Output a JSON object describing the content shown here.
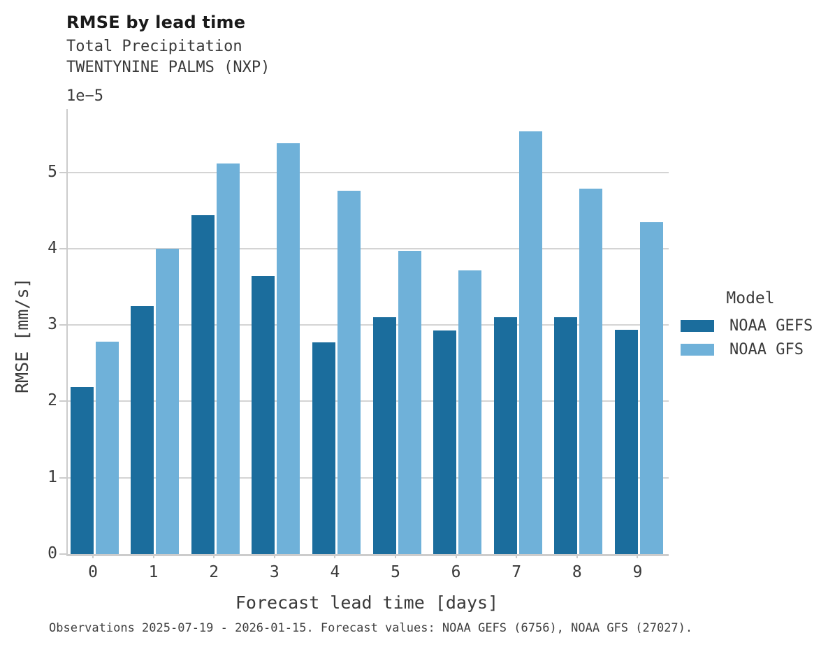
{
  "header": {
    "title": "RMSE by lead time",
    "subtitle_line1": "Total Precipitation",
    "subtitle_line2": "TWENTYNINE PALMS (NXP)"
  },
  "axes": {
    "y_offset_label": "1e−5",
    "ylabel": "RMSE [mm/s]",
    "xlabel": "Forecast lead time [days]"
  },
  "legend": {
    "title": "Model",
    "entries": [
      {
        "label": "NOAA GEFS",
        "color": "#1b6d9d"
      },
      {
        "label": "NOAA GFS",
        "color": "#6fb1d9"
      }
    ]
  },
  "caption": "Observations 2025-07-19 - 2026-01-15. Forecast values: NOAA GEFS (6756), NOAA GFS (27027).",
  "colors": {
    "gefs_bar": "#1b6d9d",
    "gfs_bar": "#6fb1d9",
    "gridline": "#d4d4d4",
    "spine": "#cccccc",
    "text": "#3a3a3a",
    "title_text": "#1a1a1a"
  },
  "chart_data": {
    "type": "bar",
    "title": "RMSE by lead time",
    "subtitle": "Total Precipitation — TWENTYNINE PALMS (NXP)",
    "xlabel": "Forecast lead time [days]",
    "ylabel": "RMSE [mm/s]",
    "value_scale": "1e-5",
    "categories": [
      "0",
      "1",
      "2",
      "3",
      "4",
      "5",
      "6",
      "7",
      "8",
      "9"
    ],
    "series": [
      {
        "name": "NOAA GEFS",
        "color": "#1b6d9d",
        "values": [
          2.19,
          3.25,
          4.44,
          3.64,
          2.77,
          3.1,
          2.93,
          3.1,
          3.1,
          2.94
        ]
      },
      {
        "name": "NOAA GFS",
        "color": "#6fb1d9",
        "values": [
          2.78,
          4.0,
          5.12,
          5.38,
          4.76,
          3.97,
          3.72,
          5.54,
          4.79,
          4.35
        ]
      }
    ],
    "y_ticks": [
      0,
      1,
      2,
      3,
      4,
      5
    ],
    "ylim": [
      0,
      5.83
    ],
    "grid": "horizontal",
    "legend_position": "right",
    "legend_title": "Model"
  }
}
